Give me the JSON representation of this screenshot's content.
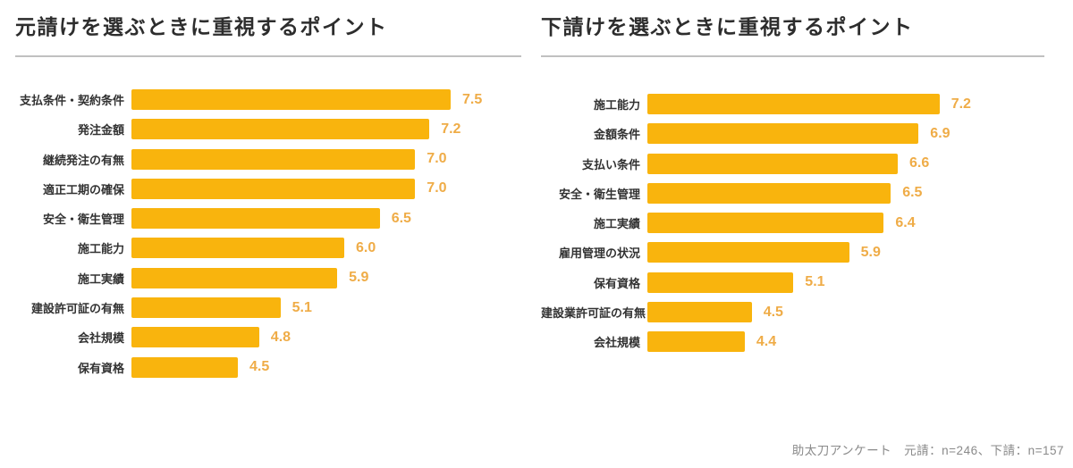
{
  "chart_data": [
    {
      "type": "bar",
      "orientation": "horizontal",
      "title": "元請けを選ぶときに重視するポイント",
      "categories": [
        "支払条件・契約条件",
        "発注金額",
        "継続発注の有無",
        "適正工期の確保",
        "安全・衛生管理",
        "施工能力",
        "施工実績",
        "建設許可証の有無",
        "会社規模",
        "保有資格"
      ],
      "values": [
        7.5,
        7.2,
        7.0,
        7.0,
        6.5,
        6.0,
        5.9,
        5.1,
        4.8,
        4.5
      ],
      "xlim": [
        3.0,
        7.5
      ],
      "value_decimals": 1,
      "grid": false,
      "legend": false,
      "bar_color": "#f9b40d",
      "value_label_color": "#efac47"
    },
    {
      "type": "bar",
      "orientation": "horizontal",
      "title": "下請けを選ぶときに重視するポイント",
      "categories": [
        "施工能力",
        "金額条件",
        "支払い条件",
        "安全・衛生管理",
        "施工実績",
        "雇用管理の状況",
        "保有資格",
        "建設業許可証の有無",
        "会社規模"
      ],
      "values": [
        7.2,
        6.9,
        6.6,
        6.5,
        6.4,
        5.9,
        5.1,
        4.5,
        4.4
      ],
      "xlim": [
        3.0,
        7.5
      ],
      "value_decimals": 1,
      "grid": false,
      "legend": false,
      "bar_color": "#f9b40d",
      "value_label_color": "#efac47"
    }
  ],
  "footnote": {
    "text": "助太刀アンケート　元請：n=246、下請：n=157"
  },
  "colors": {
    "bar": "#f9b40d",
    "value_label": "#efac47",
    "title": "#2d2d2d",
    "category_label": "#323232",
    "divider": "#c0c0c0",
    "footnote": "#8a8a8a",
    "background": "#ffffff"
  }
}
